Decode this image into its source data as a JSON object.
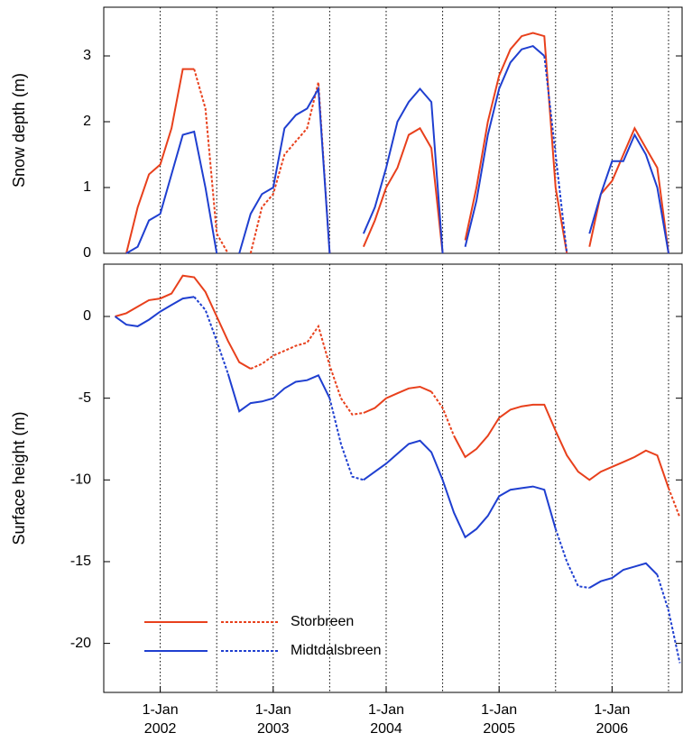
{
  "chart_data": [
    {
      "type": "line",
      "y_label": "Snow depth (m)",
      "x": [
        2001.5,
        2001.6,
        2001.7,
        2001.8,
        2001.9,
        2002.0,
        2002.1,
        2002.2,
        2002.3,
        2002.4,
        2002.5,
        2002.6,
        2002.7,
        2002.8,
        2002.9,
        2003.0,
        2003.1,
        2003.2,
        2003.3,
        2003.4,
        2003.5,
        2003.6,
        2003.7,
        2003.8,
        2003.9,
        2004.0,
        2004.1,
        2004.2,
        2004.3,
        2004.4,
        2004.5,
        2004.6,
        2004.7,
        2004.8,
        2004.9,
        2005.0,
        2005.1,
        2005.2,
        2005.3,
        2005.4,
        2005.5,
        2005.6,
        2005.7,
        2005.8,
        2005.9,
        2006.0,
        2006.1,
        2006.2,
        2006.3,
        2006.4,
        2006.5,
        2006.6
      ],
      "xlim": [
        2001.5,
        2006.62
      ],
      "ylim": [
        0,
        3.74
      ],
      "yticks": [
        0,
        1,
        2,
        3
      ],
      "vgrid": [
        2002,
        2002.5,
        2003,
        2003.5,
        2004,
        2004.5,
        2005,
        2005.5,
        2006,
        2006.5
      ],
      "series": [
        {
          "color": "#e8401c",
          "dashed_ranges": [
            [
              2002.35,
              2002.55
            ],
            [
              2002.75,
              2003.45
            ]
          ],
          "values": [
            null,
            null,
            0,
            0.7,
            1.2,
            1.35,
            1.9,
            2.8,
            2.8,
            2.2,
            0.3,
            0,
            null,
            0,
            0.7,
            0.9,
            1.5,
            1.7,
            1.9,
            2.6,
            0,
            null,
            null,
            0.1,
            0.5,
            1.0,
            1.3,
            1.8,
            1.9,
            1.6,
            0,
            null,
            0.2,
            1.0,
            2.0,
            2.7,
            3.1,
            3.3,
            3.35,
            3.3,
            1.0,
            0,
            null,
            0.1,
            0.9,
            1.1,
            1.5,
            1.9,
            1.6,
            1.3,
            0,
            null
          ]
        },
        {
          "color": "#1f3fd0",
          "dashed_ranges": [
            [
              2005.45,
              2005.65
            ]
          ],
          "values": [
            null,
            null,
            0,
            0.1,
            0.5,
            0.6,
            1.2,
            1.8,
            1.85,
            1.0,
            0,
            null,
            0,
            0.6,
            0.9,
            1.0,
            1.9,
            2.1,
            2.2,
            2.5,
            0,
            null,
            null,
            0.3,
            0.7,
            1.3,
            2.0,
            2.3,
            2.5,
            2.3,
            0,
            null,
            0.1,
            0.8,
            1.8,
            2.5,
            2.9,
            3.1,
            3.15,
            3.0,
            1.5,
            0,
            null,
            0.3,
            0.9,
            1.4,
            1.4,
            1.8,
            1.5,
            1.0,
            0,
            null
          ]
        }
      ]
    },
    {
      "type": "line",
      "y_label": "Surface height (m)",
      "x": [
        2001.5,
        2001.6,
        2001.7,
        2001.8,
        2001.9,
        2002.0,
        2002.1,
        2002.2,
        2002.3,
        2002.4,
        2002.5,
        2002.6,
        2002.7,
        2002.8,
        2002.9,
        2003.0,
        2003.1,
        2003.2,
        2003.3,
        2003.4,
        2003.5,
        2003.6,
        2003.7,
        2003.8,
        2003.9,
        2004.0,
        2004.1,
        2004.2,
        2004.3,
        2004.4,
        2004.5,
        2004.6,
        2004.7,
        2004.8,
        2004.9,
        2005.0,
        2005.1,
        2005.2,
        2005.3,
        2005.4,
        2005.5,
        2005.6,
        2005.7,
        2005.8,
        2005.9,
        2006.0,
        2006.1,
        2006.2,
        2006.3,
        2006.4,
        2006.5,
        2006.6
      ],
      "xlim": [
        2001.5,
        2006.62
      ],
      "ylim": [
        -23,
        3.2
      ],
      "yticks": [
        0,
        -5,
        -10,
        -15,
        -20
      ],
      "vgrid": [
        2002,
        2002.5,
        2003,
        2003.5,
        2004,
        2004.5,
        2005,
        2005.5,
        2006,
        2006.5
      ],
      "xticks": [
        {
          "value": 2002,
          "label": "1-Jan\n2002"
        },
        {
          "value": 2003,
          "label": "1-Jan\n2003"
        },
        {
          "value": 2004,
          "label": "1-Jan\n2004"
        },
        {
          "value": 2005,
          "label": "1-Jan\n2005"
        },
        {
          "value": 2006,
          "label": "1-Jan\n2006"
        }
      ],
      "legend": "lower left",
      "series": [
        {
          "name": "Storbreen",
          "color": "#e8401c",
          "dashed_ranges": [
            [
              2002.85,
              2003.45
            ],
            [
              2003.55,
              2003.8
            ],
            [
              2004.45,
              2004.55
            ],
            [
              2006.55,
              2006.7
            ]
          ],
          "values": [
            null,
            0,
            0.2,
            0.6,
            1.0,
            1.1,
            1.4,
            2.5,
            2.4,
            1.5,
            0.0,
            -1.5,
            -2.8,
            -3.2,
            -2.9,
            -2.4,
            -2.1,
            -1.8,
            -1.6,
            -0.6,
            -3.0,
            -5.0,
            -6.0,
            -5.9,
            -5.6,
            -5.0,
            -4.7,
            -4.4,
            -4.3,
            -4.6,
            -5.6,
            -7.3,
            -8.6,
            -8.1,
            -7.3,
            -6.2,
            -5.7,
            -5.5,
            -5.4,
            -5.4,
            -7.0,
            -8.5,
            -9.5,
            -10.0,
            -9.5,
            -9.2,
            -8.9,
            -8.6,
            -8.2,
            -8.5,
            -10.5,
            -12.3
          ]
        },
        {
          "name": "Midtdalsbreen",
          "color": "#1f3fd0",
          "dashed_ranges": [
            [
              2002.35,
              2002.55
            ],
            [
              2003.55,
              2003.8
            ],
            [
              2005.55,
              2005.75
            ],
            [
              2006.45,
              2006.7
            ]
          ],
          "values": [
            null,
            0,
            -0.5,
            -0.6,
            -0.2,
            0.3,
            0.7,
            1.1,
            1.2,
            0.4,
            -1.5,
            -3.5,
            -5.8,
            -5.3,
            -5.2,
            -5.0,
            -4.4,
            -4.0,
            -3.9,
            -3.6,
            -5.0,
            -7.8,
            -9.8,
            -10.0,
            -9.5,
            -9.0,
            -8.4,
            -7.8,
            -7.6,
            -8.3,
            -10.0,
            -12.0,
            -13.5,
            -13.0,
            -12.2,
            -11.0,
            -10.6,
            -10.5,
            -10.4,
            -10.6,
            -13.0,
            -15.0,
            -16.5,
            -16.6,
            -16.2,
            -16.0,
            -15.5,
            -15.3,
            -15.1,
            -15.8,
            -18.0,
            -21.2
          ]
        }
      ]
    }
  ]
}
